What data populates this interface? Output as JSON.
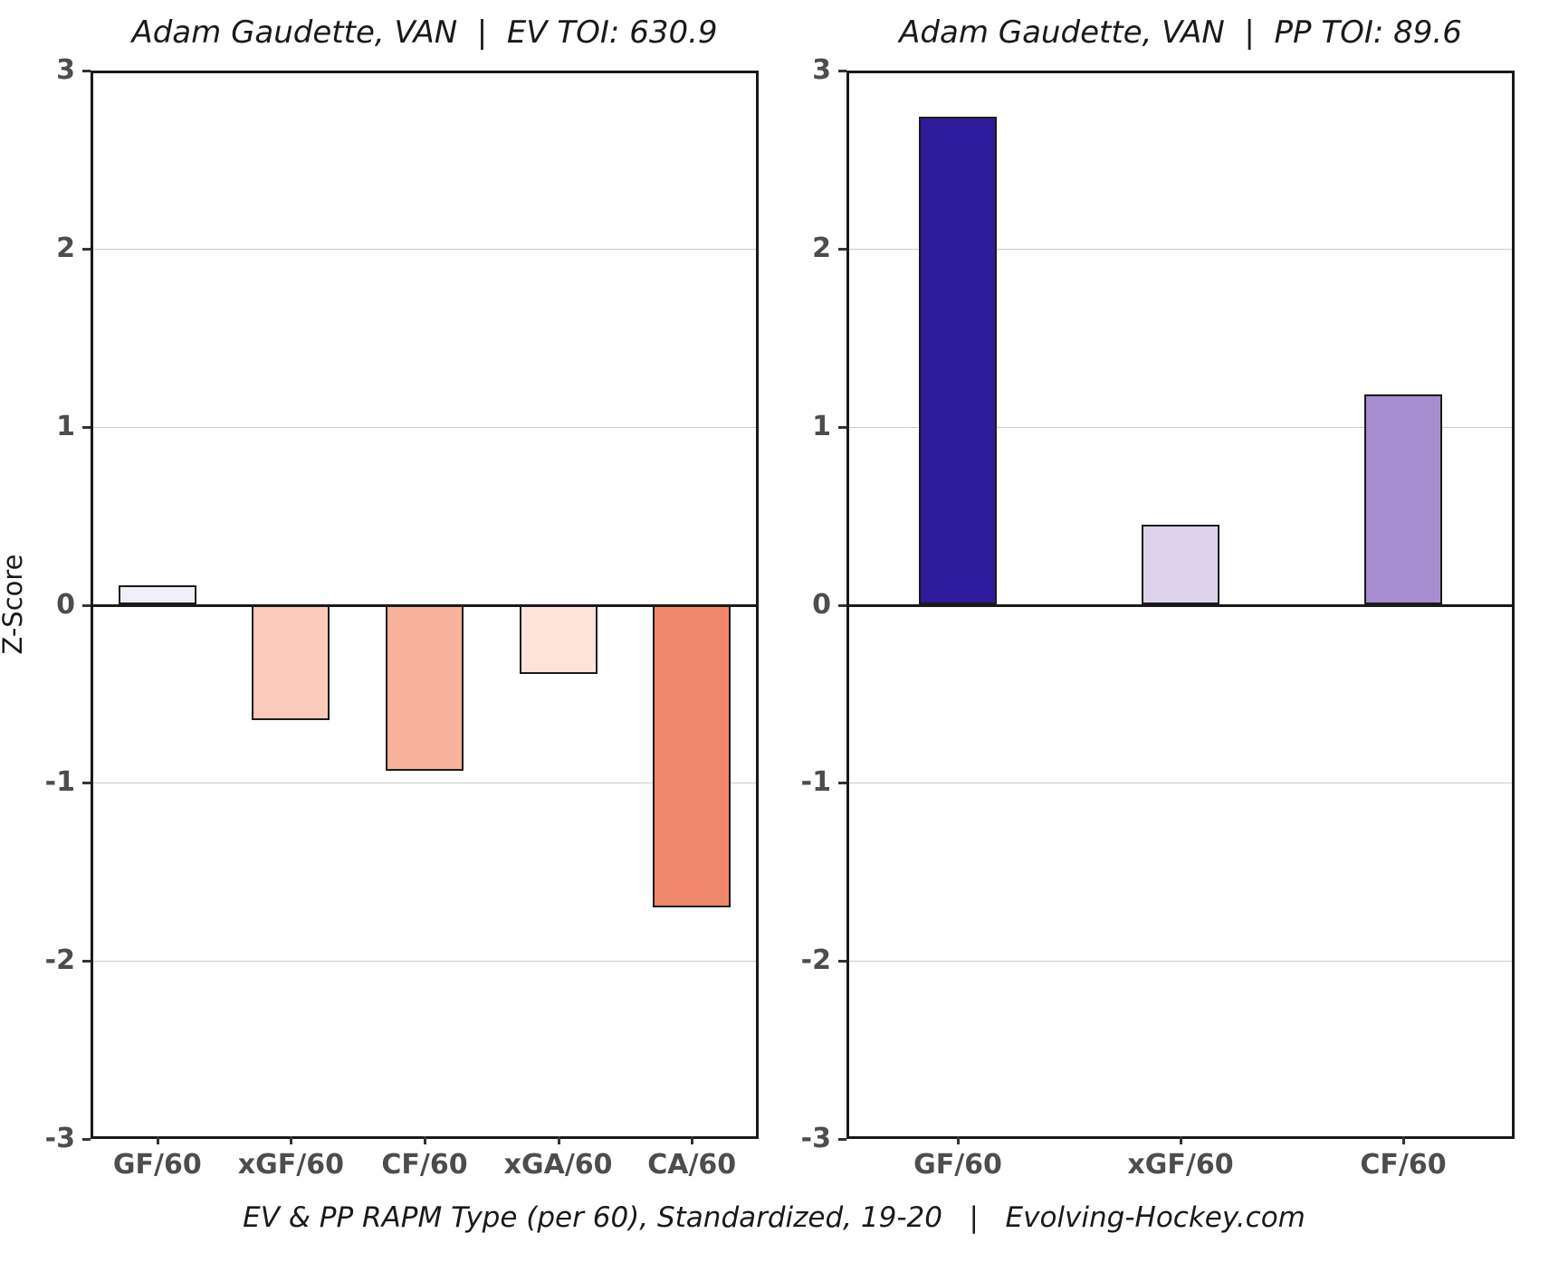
{
  "page": {
    "background": "#ffffff",
    "caption": "EV & PP RAPM Type (per 60), Standardized, 19-20   |   Evolving-Hockey.com"
  },
  "colors": {
    "spine": "#1a1a1a",
    "gridline": "#cbcbcb",
    "zero_line": "#1a1a1a",
    "tick_label": "#4d4d4d",
    "title_text": "#1a1a1a"
  },
  "chart_data": [
    {
      "type": "bar",
      "title": "Adam Gaudette, VAN  |  EV TOI: 630.9",
      "ylabel": "Z-Score",
      "xlabel": "",
      "ylim": [
        -3,
        3
      ],
      "yticks": [
        3,
        2,
        1,
        0,
        -1,
        -2,
        -3
      ],
      "grid": true,
      "legend_position": "none",
      "categories": [
        "GF/60",
        "xGF/60",
        "CF/60",
        "xGA/60",
        "CA/60"
      ],
      "values": [
        0.11,
        -0.65,
        -0.93,
        -0.39,
        -1.7
      ],
      "bar_colors": [
        "#f1eef9",
        "#fccabb",
        "#f9b29d",
        "#fde3da",
        "#f1876b"
      ],
      "bar_edge_color": "#1a1a1a"
    },
    {
      "type": "bar",
      "title": "Adam Gaudette, VAN  |  PP TOI: 89.6",
      "ylabel": "",
      "xlabel": "",
      "ylim": [
        -3,
        3
      ],
      "yticks": [
        3,
        2,
        1,
        0,
        -1,
        -2,
        -3
      ],
      "grid": true,
      "legend_position": "none",
      "categories": [
        "GF/60",
        "xGF/60",
        "CF/60"
      ],
      "values": [
        2.74,
        0.45,
        1.18
      ],
      "bar_colors": [
        "#2f1c9c",
        "#ddd3eb",
        "#a58dd0"
      ],
      "bar_edge_color": "#1a1a1a"
    }
  ]
}
